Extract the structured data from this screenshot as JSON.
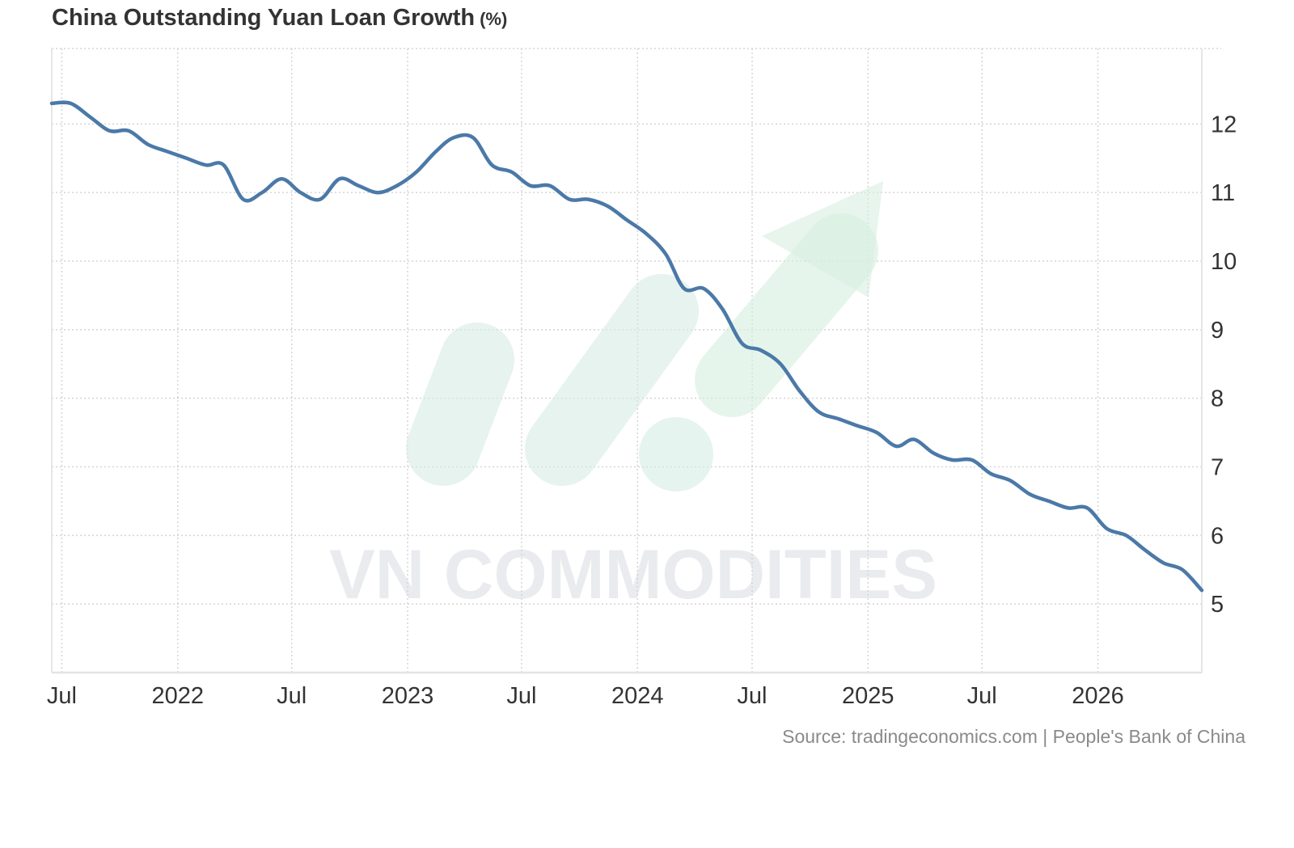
{
  "title": "China Outstanding Yuan Loan Growth",
  "title_unit": "(%)",
  "source": "Source: tradingeconomics.com | People's Bank of China",
  "watermark": "VN COMMODITIES",
  "colors": {
    "line": "#4b79a8",
    "grid": "#d5d5d5",
    "watermark_green": "#d3ece3"
  },
  "chart_data": {
    "type": "line",
    "title": "China Outstanding Yuan Loan Growth",
    "unit": "%",
    "ylim": [
      4,
      13.1
    ],
    "yticks": [
      5,
      6,
      7,
      8,
      9,
      10,
      11,
      12
    ],
    "xlim": [
      "2021-06-15",
      "2026-06-15"
    ],
    "xticks": [
      {
        "date": "2021-07-01",
        "label": "Jul"
      },
      {
        "date": "2022-01-01",
        "label": "2022"
      },
      {
        "date": "2022-07-01",
        "label": "Jul"
      },
      {
        "date": "2023-01-01",
        "label": "2023"
      },
      {
        "date": "2023-07-01",
        "label": "Jul"
      },
      {
        "date": "2024-01-01",
        "label": "2024"
      },
      {
        "date": "2024-07-01",
        "label": "Jul"
      },
      {
        "date": "2025-01-01",
        "label": "2025"
      },
      {
        "date": "2025-07-01",
        "label": "Jul"
      },
      {
        "date": "2026-01-01",
        "label": "2026"
      }
    ],
    "grid": true,
    "y_axis_side": "right",
    "series": [
      {
        "points": [
          [
            "2021-06-15",
            12.3
          ],
          [
            "2021-07-15",
            12.3
          ],
          [
            "2021-08-15",
            12.1
          ],
          [
            "2021-09-15",
            11.9
          ],
          [
            "2021-10-15",
            11.9
          ],
          [
            "2021-11-15",
            11.7
          ],
          [
            "2021-12-15",
            11.6
          ],
          [
            "2022-01-15",
            11.5
          ],
          [
            "2022-02-15",
            11.4
          ],
          [
            "2022-03-15",
            11.4
          ],
          [
            "2022-04-15",
            10.9
          ],
          [
            "2022-05-15",
            11.0
          ],
          [
            "2022-06-15",
            11.2
          ],
          [
            "2022-07-15",
            11.0
          ],
          [
            "2022-08-15",
            10.9
          ],
          [
            "2022-09-15",
            11.2
          ],
          [
            "2022-10-15",
            11.1
          ],
          [
            "2022-11-15",
            11.0
          ],
          [
            "2022-12-15",
            11.1
          ],
          [
            "2023-01-15",
            11.3
          ],
          [
            "2023-02-15",
            11.6
          ],
          [
            "2023-03-15",
            11.8
          ],
          [
            "2023-04-15",
            11.8
          ],
          [
            "2023-05-15",
            11.4
          ],
          [
            "2023-06-15",
            11.3
          ],
          [
            "2023-07-15",
            11.1
          ],
          [
            "2023-08-15",
            11.1
          ],
          [
            "2023-09-15",
            10.9
          ],
          [
            "2023-10-15",
            10.9
          ],
          [
            "2023-11-15",
            10.8
          ],
          [
            "2023-12-15",
            10.6
          ],
          [
            "2024-01-15",
            10.4
          ],
          [
            "2024-02-15",
            10.1
          ],
          [
            "2024-03-15",
            9.6
          ],
          [
            "2024-04-15",
            9.6
          ],
          [
            "2024-05-15",
            9.3
          ],
          [
            "2024-06-15",
            8.8
          ],
          [
            "2024-07-15",
            8.7
          ],
          [
            "2024-08-15",
            8.5
          ],
          [
            "2024-09-15",
            8.1
          ],
          [
            "2024-10-15",
            7.8
          ],
          [
            "2024-11-15",
            7.7
          ],
          [
            "2024-12-15",
            7.6
          ],
          [
            "2025-01-15",
            7.5
          ],
          [
            "2025-02-15",
            7.3
          ],
          [
            "2025-03-15",
            7.4
          ],
          [
            "2025-04-15",
            7.2
          ],
          [
            "2025-05-15",
            7.1
          ],
          [
            "2025-06-15",
            7.1
          ],
          [
            "2025-07-15",
            6.9
          ],
          [
            "2025-08-15",
            6.8
          ],
          [
            "2025-09-15",
            6.6
          ],
          [
            "2025-10-15",
            6.5
          ],
          [
            "2025-11-15",
            6.4
          ],
          [
            "2025-12-15",
            6.4
          ],
          [
            "2026-01-15",
            6.1
          ],
          [
            "2026-02-15",
            6.0
          ],
          [
            "2026-03-15",
            5.8
          ],
          [
            "2026-04-15",
            5.6
          ],
          [
            "2026-05-15",
            5.5
          ],
          [
            "2026-06-15",
            5.2
          ]
        ]
      }
    ]
  }
}
